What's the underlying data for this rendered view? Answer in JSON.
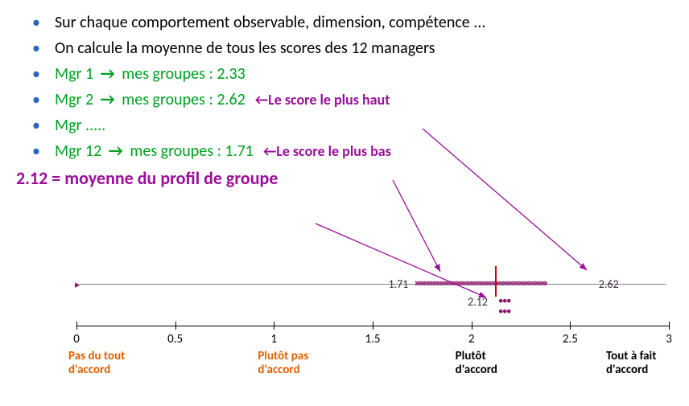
{
  "bullets": [
    {
      "text": "Sur chaque comportement observable, dimension, compétence ...",
      "color": "txt-black"
    },
    {
      "text": "On calcule la moyenne de tous les scores des 12 managers",
      "color": "txt-black"
    }
  ],
  "managers": [
    {
      "name": "Mgr 1",
      "score": "2.33",
      "annot": ""
    },
    {
      "name": "Mgr 2",
      "score": "2.62",
      "annot": "←Le score le plus haut"
    },
    {
      "name": "Mgr .....",
      "score": "",
      "annot": ""
    },
    {
      "name": "Mgr 12",
      "score": "1.71",
      "annot": "←Le score le plus bas"
    }
  ],
  "group_label": "mes groupes",
  "mean_line": "2.12 = moyenne du profil de groupe",
  "chart": {
    "min_value": 1.71,
    "max_value": 2.62,
    "mean_value": 2.12,
    "min_label": "1.71",
    "max_label": "2.62",
    "mean_label": "2.12",
    "chevron_color": "#8a1a6a",
    "mean_color": "#d00000",
    "dots_color": "#8a1a6a"
  },
  "axis": {
    "min": 0,
    "max": 3,
    "ticks": [
      {
        "value": 0,
        "label": "0"
      },
      {
        "value": 0.5,
        "label": "0.5"
      },
      {
        "value": 1,
        "label": "1"
      },
      {
        "value": 1.5,
        "label": "1.5"
      },
      {
        "value": 2,
        "label": "2"
      },
      {
        "value": 2.5,
        "label": "2.5"
      },
      {
        "value": 3,
        "label": "3"
      }
    ],
    "categories": [
      {
        "value": 0,
        "text": "Pas du tout\nd'accord",
        "cls": "cat-orange"
      },
      {
        "value": 1,
        "text": "Plutôt pas\nd'accord",
        "cls": "cat-orange"
      },
      {
        "value": 2,
        "text": "Plutôt\nd'accord",
        "cls": "cat-black"
      },
      {
        "value": 3,
        "text": "Tout à fait\nd'accord",
        "cls": "cat-black"
      }
    ]
  },
  "arrows": {
    "color": "#9a0e9a",
    "arrows": [
      {
        "from": [
          525,
          160
        ],
        "to": [
          729,
          336
        ]
      },
      {
        "from": [
          488,
          224
        ],
        "to": [
          547,
          338
        ]
      },
      {
        "from": [
          392,
          278
        ],
        "to": [
          604,
          370
        ]
      }
    ]
  }
}
